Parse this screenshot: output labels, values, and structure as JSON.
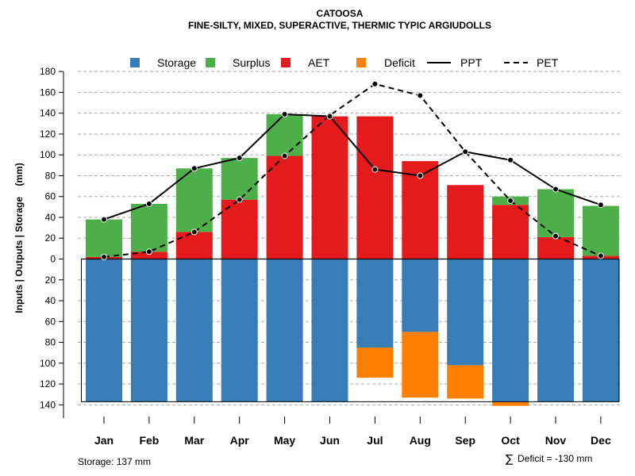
{
  "chart_data": {
    "type": "bar",
    "title": "CATOOSA",
    "subtitle": "FINE-SILTY, MIXED, SUPERACTIVE, THERMIC TYPIC ARGIUDOLLS",
    "ylabel": "Inputs | Outputs | Storage    (mm)",
    "ylim": [
      -150,
      180
    ],
    "y_ticks_upper": [
      0,
      20,
      40,
      60,
      80,
      100,
      120,
      140,
      160,
      180
    ],
    "y_ticks_lower": [
      20,
      40,
      60,
      80,
      100,
      120,
      140
    ],
    "categories": [
      "Jan",
      "Feb",
      "Mar",
      "Apr",
      "May",
      "Jun",
      "Jul",
      "Aug",
      "Sep",
      "Oct",
      "Nov",
      "Dec"
    ],
    "legend": [
      {
        "key": "storage",
        "label": "Storage",
        "kind": "box"
      },
      {
        "key": "surplus",
        "label": "Surplus",
        "kind": "box"
      },
      {
        "key": "aet",
        "label": "AET",
        "kind": "box"
      },
      {
        "key": "deficit",
        "label": "Deficit",
        "kind": "box"
      },
      {
        "key": "ppt",
        "label": "PPT",
        "kind": "solid"
      },
      {
        "key": "pet",
        "label": "PET",
        "kind": "dashed"
      }
    ],
    "colors": {
      "storage": "#377EB8",
      "surplus": "#4DAF4A",
      "aet": "#E41A1C",
      "deficit": "#FF7F00",
      "grid": "#aaaaaa",
      "line": "#000000"
    },
    "series": [
      {
        "name": "AET",
        "values": [
          2,
          7,
          26,
          57,
          99,
          137,
          137,
          94,
          71,
          52,
          21,
          3
        ]
      },
      {
        "name": "Surplus",
        "values": [
          36,
          46,
          61,
          40,
          40,
          0,
          0,
          0,
          0,
          8,
          46,
          48
        ]
      },
      {
        "name": "Storage",
        "values": [
          137,
          137,
          137,
          137,
          137,
          137,
          85,
          70,
          102,
          137,
          137,
          137
        ]
      },
      {
        "name": "Deficit",
        "values": [
          0,
          0,
          0,
          0,
          0,
          0,
          29,
          63,
          32,
          4,
          0,
          0
        ]
      },
      {
        "name": "PPT",
        "values": [
          38,
          53,
          87,
          97,
          139,
          137,
          86,
          80,
          103,
          95,
          67,
          52
        ]
      },
      {
        "name": "PET",
        "values": [
          2,
          7,
          26,
          57,
          99,
          138,
          168,
          157,
          103,
          56,
          22,
          3
        ]
      }
    ],
    "storage_capacity": 137
  },
  "footer": {
    "storage_note": "Storage: 137 mm",
    "sigma_symbol": "∑",
    "deficit_note": "Deficit = -130 mm"
  }
}
